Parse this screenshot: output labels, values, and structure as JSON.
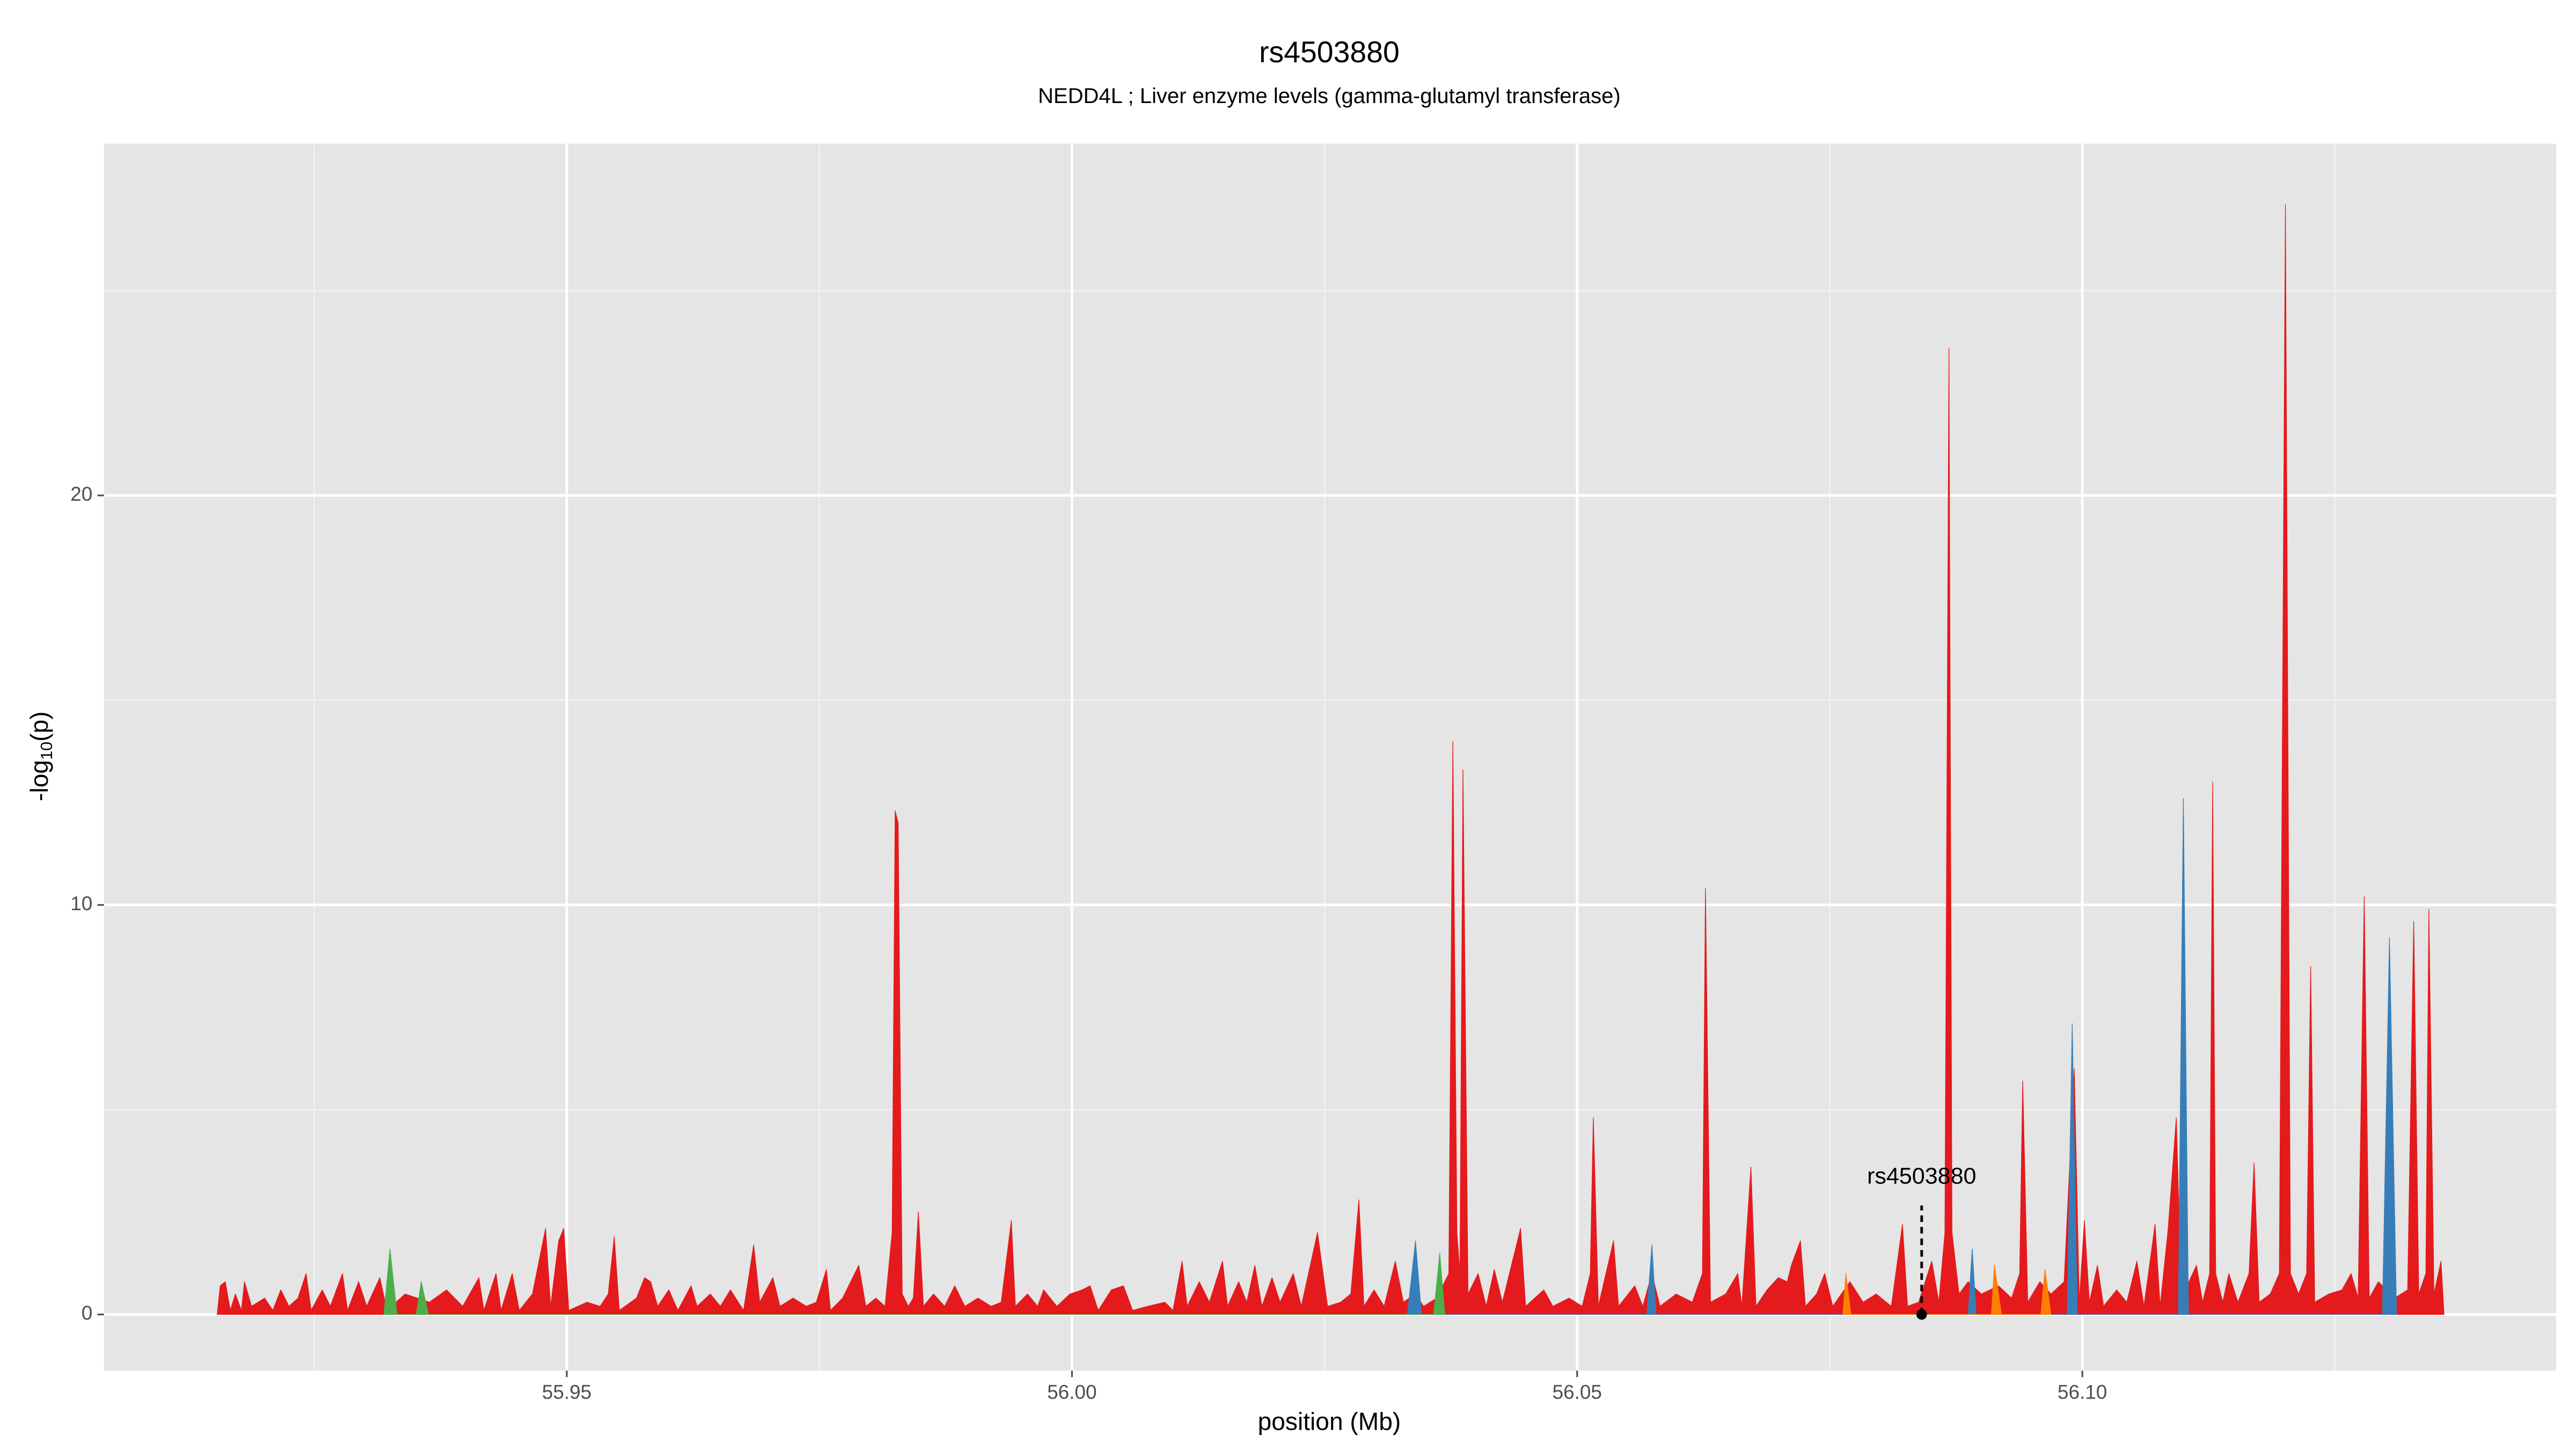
{
  "chart_data": {
    "type": "area",
    "title": "rs4503880",
    "subtitle": "NEDD4L ; Liver enzyme levels (gamma-glutamyl transferase)",
    "xlabel": "position (Mb)",
    "ylabel": [
      "-log",
      "10",
      "(p)"
    ],
    "xlim": [
      55.9042,
      56.1469
    ],
    "ylim": [
      -1.37,
      28.59
    ],
    "xticks": [
      55.95,
      {
        "value": 56.0,
        "label": "56.00"
      },
      56.05,
      {
        "value": 56.1,
        "label": "56.10"
      }
    ],
    "yticks": [
      0,
      10,
      20
    ],
    "grid": true,
    "background": "#e5e5e5",
    "annotation": {
      "text": "rs4503880",
      "x": 56.0841,
      "y": 0
    },
    "series": [
      {
        "color": "#e41a1c",
        "x": [
          55.9154,
          55.9157,
          55.9162,
          55.9167,
          55.9172,
          55.9178,
          55.9181,
          55.9188,
          55.9201,
          55.9209,
          55.9217,
          55.9225,
          55.9234,
          55.9242,
          55.9247,
          55.9258,
          55.9266,
          55.9278,
          55.9283,
          55.9294,
          55.9302,
          55.9315,
          55.9322,
          55.934,
          55.9364,
          55.9381,
          55.9397,
          55.9413,
          55.9418,
          55.943,
          55.9435,
          55.9446,
          55.9453,
          55.9466,
          55.9479,
          55.9484,
          55.9492,
          55.9497,
          55.9502,
          55.952,
          55.9533,
          55.9541,
          55.9547,
          55.9552,
          55.9569,
          55.9577,
          55.9583,
          55.959,
          55.9601,
          55.961,
          55.9623,
          55.9629,
          55.9642,
          55.9652,
          55.9662,
          55.9675,
          55.9685,
          55.9691,
          55.9704,
          55.9711,
          55.9724,
          55.9737,
          55.9747,
          55.9757,
          55.9761,
          55.9773,
          55.9789,
          55.9796,
          55.9806,
          55.9815,
          55.9822,
          55.9825,
          55.9828,
          55.9832,
          55.9838,
          55.9843,
          55.9848,
          55.9853,
          55.9863,
          55.9874,
          55.9884,
          55.9894,
          55.9907,
          55.992,
          55.993,
          55.994,
          55.9944,
          55.9956,
          55.9966,
          55.9972,
          55.9985,
          55.9998,
          56.001,
          56.0018,
          56.0026,
          56.0039,
          56.0051,
          56.006,
          56.0075,
          56.0092,
          56.01,
          56.0109,
          56.0114,
          56.0126,
          56.0136,
          56.0149,
          56.0154,
          56.0165,
          56.0173,
          56.0181,
          56.0188,
          56.0198,
          56.0206,
          56.0219,
          56.0227,
          56.0243,
          56.0253,
          56.0266,
          56.0276,
          56.0284,
          56.0289,
          56.0299,
          56.0309,
          56.032,
          56.0328,
          56.034,
          56.0348,
          56.0361,
          56.0373,
          56.0377,
          56.0381,
          56.0384,
          56.0387,
          56.0392,
          56.0402,
          56.041,
          56.0418,
          56.0426,
          56.0444,
          56.0449,
          56.0467,
          56.0476,
          56.0492,
          56.0505,
          56.0513,
          56.0516,
          56.0521,
          56.0536,
          56.0541,
          56.0557,
          56.0565,
          56.0574,
          56.0582,
          56.0598,
          56.0614,
          56.0624,
          56.0627,
          56.0632,
          56.0647,
          56.0659,
          56.0663,
          56.0672,
          56.0677,
          56.0688,
          56.0699,
          56.0708,
          56.0712,
          56.0721,
          56.0726,
          56.0737,
          56.0745,
          56.0753,
          56.077,
          56.0783,
          56.0796,
          56.0811,
          56.0822,
          56.0827,
          56.0838,
          56.0851,
          56.0858,
          56.0864,
          56.0868,
          56.0871,
          56.0878,
          56.0887,
          56.09,
          56.0917,
          56.093,
          56.0938,
          56.0941,
          56.0946,
          56.0958,
          56.0969,
          56.0982,
          56.0992,
          56.0997,
          56.1002,
          56.1007,
          56.1015,
          56.1021,
          56.1034,
          56.1044,
          56.1054,
          56.1061,
          56.1072,
          56.1077,
          56.1085,
          56.1093,
          56.1098,
          56.1113,
          56.1119,
          56.1126,
          56.1129,
          56.1132,
          56.1139,
          56.1145,
          56.1154,
          56.1165,
          56.117,
          56.1175,
          56.1186,
          56.1195,
          56.1201,
          56.1206,
          56.1214,
          56.1222,
          56.1226,
          56.123,
          56.1244,
          56.1257,
          56.1266,
          56.1273,
          56.1279,
          56.1284,
          56.1293,
          56.1309,
          56.1322,
          56.1328,
          56.1333,
          56.134,
          56.1343,
          56.1348,
          56.1355,
          56.1358
        ],
        "values": [
          0,
          0.7,
          0.8,
          0.1,
          0.5,
          0.1,
          0.8,
          0.2,
          0.4,
          0.1,
          0.6,
          0.2,
          0.4,
          1.0,
          0.1,
          0.6,
          0.2,
          1.0,
          0.1,
          0.8,
          0.2,
          0.9,
          0.1,
          0.5,
          0.3,
          0.6,
          0.2,
          0.9,
          0.1,
          1.0,
          0.1,
          1.0,
          0.1,
          0.5,
          2.1,
          0.2,
          1.8,
          2.1,
          0.1,
          0.3,
          0.2,
          0.5,
          1.9,
          0.1,
          0.4,
          0.9,
          0.8,
          0.2,
          0.6,
          0.1,
          0.7,
          0.2,
          0.5,
          0.2,
          0.6,
          0.1,
          1.7,
          0.3,
          0.9,
          0.2,
          0.4,
          0.2,
          0.3,
          1.1,
          0.1,
          0.4,
          1.2,
          0.2,
          0.4,
          0.2,
          2,
          12.3,
          12,
          0.5,
          0.2,
          0.4,
          2.5,
          0.2,
          0.5,
          0.2,
          0.7,
          0.2,
          0.4,
          0.2,
          0.3,
          2.3,
          0.2,
          0.5,
          0.2,
          0.6,
          0.2,
          0.5,
          0.6,
          0.7,
          0.1,
          0.6,
          0.7,
          0.1,
          0.2,
          0.3,
          0.1,
          1.3,
          0.2,
          0.8,
          0.3,
          1.3,
          0.2,
          0.8,
          0.3,
          1.2,
          0.2,
          0.9,
          0.3,
          1.0,
          0.2,
          2.0,
          0.2,
          0.3,
          0.5,
          2.8,
          0.2,
          0.6,
          0.2,
          1.3,
          0.3,
          0.5,
          0.2,
          0.4,
          1,
          14,
          2,
          1,
          13.3,
          0.5,
          1.0,
          0.2,
          1.1,
          0.3,
          2.1,
          0.2,
          0.6,
          0.2,
          0.4,
          0.2,
          1,
          4.8,
          0.2,
          1.8,
          0.2,
          0.7,
          0.2,
          1.0,
          0.2,
          0.5,
          0.3,
          1,
          10.4,
          0.3,
          0.5,
          1.0,
          0.2,
          3.6,
          0.2,
          0.6,
          0.9,
          0.8,
          1.2,
          1.8,
          0.2,
          0.5,
          1.0,
          0.2,
          0.8,
          0.3,
          0.5,
          0.2,
          2.2,
          0.2,
          0.3,
          1.3,
          0.3,
          2,
          23.6,
          2,
          0.5,
          0.8,
          0.5,
          0.7,
          0.4,
          1,
          5.7,
          0.3,
          0.8,
          0.5,
          0.8,
          6.0,
          0.3,
          2.3,
          0.3,
          1.2,
          0.2,
          0.6,
          0.3,
          1.3,
          0.2,
          2.2,
          0.2,
          2.1,
          4.8,
          0.4,
          1.2,
          0.3,
          1,
          13,
          1,
          0.3,
          1.0,
          0.3,
          1,
          3.7,
          0.3,
          0.5,
          1,
          27.1,
          1,
          0.5,
          1,
          8.5,
          0.3,
          0.5,
          0.6,
          1.0,
          0.4,
          10.2,
          0.4,
          0.8,
          0.4,
          0.6,
          9.6,
          0.5,
          1,
          9.9,
          0.5,
          1.3,
          0
        ]
      },
      {
        "color": "#377eb8",
        "x": [
          56.0332,
          56.034,
          56.0346,
          56.0569,
          56.0574,
          56.0578,
          56.0887,
          56.0891,
          56.0895,
          56.0985,
          56.099,
          56.0995,
          56.1095,
          56.11,
          56.1105,
          56.1297,
          56.1304,
          56.1311
        ],
        "values": [
          0,
          1.8,
          0,
          0,
          1.7,
          0,
          0,
          1.6,
          0,
          0,
          7.1,
          0,
          0,
          12.6,
          0,
          0,
          9.2,
          0
        ]
      },
      {
        "color": "#4daf4a",
        "x": [
          55.9319,
          55.9325,
          55.9332,
          55.9351,
          55.9356,
          55.9363,
          56.0358,
          56.0364,
          56.0369
        ],
        "values": [
          0,
          1.6,
          0,
          0,
          0.8,
          0,
          0,
          1.5,
          0
        ]
      },
      {
        "color": "#ff7f00",
        "x": [
          56.0763,
          56.0766,
          56.0771,
          56.091,
          56.0913,
          56.092,
          56.0959,
          56.0963,
          56.0969
        ],
        "values": [
          0,
          1.0,
          0,
          0,
          1.2,
          0,
          0,
          1.1,
          0
        ]
      }
    ]
  }
}
